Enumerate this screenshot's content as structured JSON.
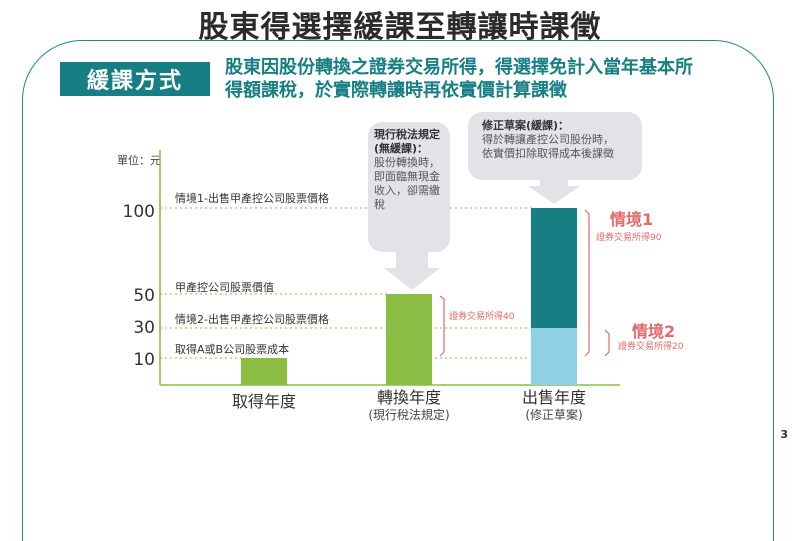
{
  "title": "股東得選擇緩課至轉讓時課徵",
  "method_badge": "緩課方式",
  "headline_lines": [
    "股東因股份轉換之證券交易所得，得選擇免計入當年基本所",
    "得額課稅，於實際轉讓時再依實價計算課徵"
  ],
  "unit_label": "單位：元",
  "y_ticks": [
    "100",
    "50",
    "30",
    "10"
  ],
  "guide_labels": [
    "情境1-出售甲產控公司股票價格",
    "甲產控公司股票價值",
    "情境2-出售甲產控公司股票價格",
    "取得A或B公司股票成本"
  ],
  "callout_current": {
    "title_lines": [
      "現行稅法規定",
      "(無緩課)："
    ],
    "body_lines": [
      "股份轉換時，",
      "即面臨無現金",
      "收入，卻需繳",
      "稅"
    ]
  },
  "callout_revised": {
    "title": "修正草案(緩課)：",
    "body_lines": [
      "得於轉讓產控公司股份時，",
      "依實價扣除取得成本後課徵"
    ]
  },
  "x_categories": [
    {
      "label": "取得年度",
      "sub": ""
    },
    {
      "label": "轉換年度",
      "sub": "(現行稅法規定)"
    },
    {
      "label": "出售年度",
      "sub": "(修正草案)"
    }
  ],
  "gain_label_conversion": "證券交易所得40",
  "scenario1": {
    "title": "情境1",
    "gain": "證券交易所得90"
  },
  "scenario2": {
    "title": "情境2",
    "gain": "證券交易所得20"
  },
  "colors": {
    "green": "#8bbd45",
    "teal": "#177f84",
    "light_blue": "#8fd1e3",
    "red": "#e06a6a",
    "guide": "#8bbd45"
  },
  "chart_data": {
    "type": "bar",
    "categories": [
      "取得年度",
      "轉換年度",
      "出售年度"
    ],
    "reference_lines": [
      {
        "label": "情境1-出售甲產控公司股票價格",
        "value": 100
      },
      {
        "label": "甲產控公司股票價值",
        "value": 50
      },
      {
        "label": "情境2-出售甲產控公司股票價格",
        "value": 30
      },
      {
        "label": "取得A或B公司股票成本",
        "value": 10
      }
    ],
    "bars": [
      {
        "category": "取得年度",
        "segments": [
          {
            "value": 10,
            "color": "#8bbd45"
          }
        ]
      },
      {
        "category": "轉換年度",
        "segments": [
          {
            "value": 50,
            "color": "#8bbd45"
          }
        ]
      },
      {
        "category": "出售年度",
        "segments": [
          {
            "value": 30,
            "color": "#8fd1e3"
          },
          {
            "value": 70,
            "color": "#177f84"
          }
        ]
      }
    ],
    "annotations": [
      "證券交易所得40",
      "證券交易所得90",
      "證券交易所得20"
    ],
    "ylabel": "單位：元",
    "y_ticks": [
      10,
      30,
      50,
      100
    ]
  },
  "page_number": "3"
}
